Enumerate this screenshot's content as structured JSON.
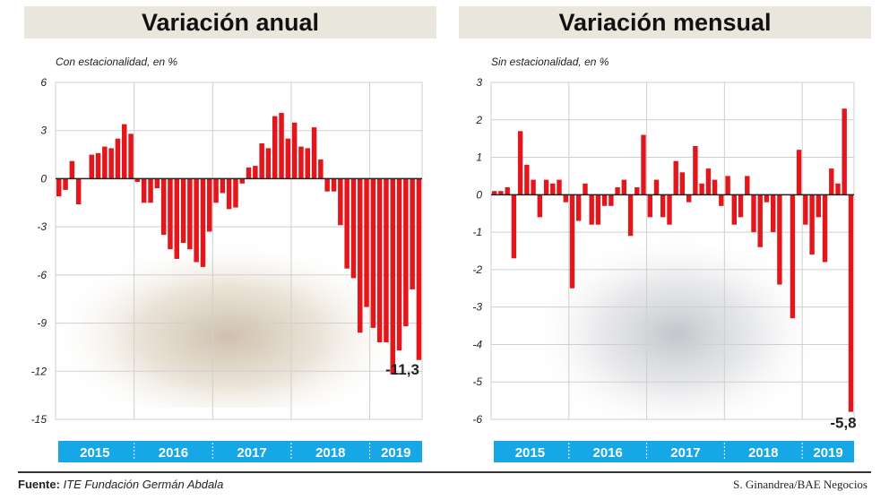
{
  "chart_data": [
    {
      "type": "bar",
      "title": "Variación anual",
      "subtitle": "Con estacionalidad, en %",
      "ylim": [
        -15,
        6
      ],
      "yticks": [
        6,
        3,
        0,
        -3,
        -6,
        -9,
        -12,
        -15
      ],
      "year_labels": [
        "2015",
        "2016",
        "2017",
        "2018",
        "2019"
      ],
      "grid": true,
      "bar_color": "#e3161c",
      "last_label": "-11,3",
      "values": [
        -1.1,
        -0.7,
        1.1,
        -1.6,
        0,
        1.5,
        1.6,
        2.0,
        1.9,
        2.5,
        3.4,
        2.8,
        -0.2,
        -1.5,
        -1.5,
        -0.6,
        -3.5,
        -4.4,
        -5.0,
        -4.0,
        -4.4,
        -5.2,
        -5.5,
        -3.3,
        -1.5,
        -0.9,
        -1.9,
        -1.8,
        -0.3,
        0.7,
        0.8,
        2.2,
        1.9,
        3.9,
        4.1,
        2.5,
        3.5,
        2.0,
        1.9,
        3.2,
        1.2,
        -0.8,
        -0.8,
        -2.9,
        -5.6,
        -6.2,
        -9.6,
        -8.0,
        -9.3,
        -10.2,
        -10.2,
        -12.2,
        -10.7,
        -9.2,
        -6.9,
        -11.3
      ]
    },
    {
      "type": "bar",
      "title": "Variación mensual",
      "subtitle": "Sin estacionalidad, en %",
      "ylim": [
        -6,
        3
      ],
      "yticks": [
        3,
        2,
        1,
        0,
        -1,
        -2,
        -3,
        -4,
        -5,
        -6
      ],
      "year_labels": [
        "2015",
        "2016",
        "2017",
        "2018",
        "2019"
      ],
      "grid": true,
      "bar_color": "#e3161c",
      "last_label": "-5,8",
      "values": [
        0.1,
        0.1,
        0.2,
        -1.7,
        1.7,
        0.8,
        0.4,
        -0.6,
        0.4,
        0.3,
        0.4,
        -0.2,
        -2.5,
        -0.7,
        0.3,
        -0.8,
        -0.8,
        -0.3,
        -0.3,
        0.2,
        0.4,
        -1.1,
        0.2,
        1.6,
        -0.6,
        0.4,
        -0.6,
        -0.8,
        0.9,
        0.6,
        -0.2,
        1.3,
        0.3,
        0.7,
        0.4,
        -0.3,
        0.5,
        -0.8,
        -0.6,
        0.5,
        -1.0,
        -1.4,
        -0.2,
        -1.0,
        -2.4,
        0,
        -3.3,
        1.2,
        -0.8,
        -1.6,
        -0.6,
        -1.8,
        0.7,
        0.3,
        2.3,
        -5.8
      ]
    }
  ],
  "footer": {
    "source_label": "Fuente:",
    "source": "ITE Fundación Germán Abdala",
    "credit": "S. Ginandrea/BAE Negocios"
  },
  "colors": {
    "year_band": "#16a7e6",
    "title_band": "#e9e7dd"
  }
}
